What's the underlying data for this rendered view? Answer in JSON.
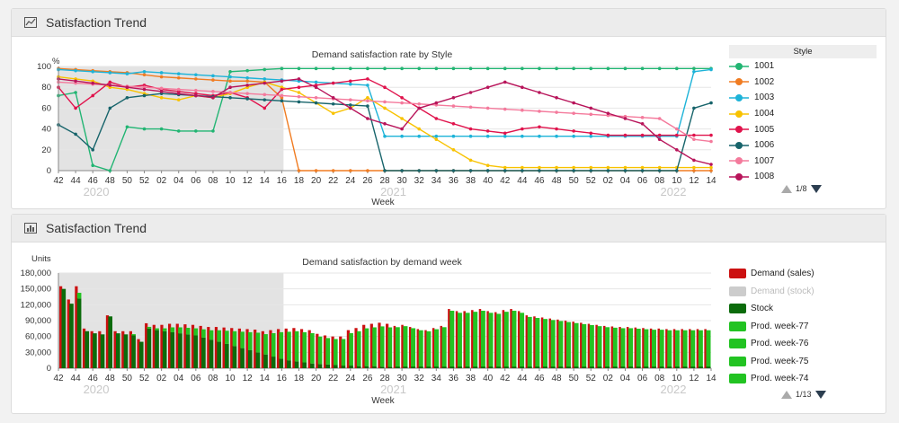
{
  "panel1": {
    "title": "Satisfaction Trend",
    "icon": "line-chart-icon",
    "legend_header": "Style",
    "legend_items": [
      {
        "label": "1001",
        "color": "#22b573"
      },
      {
        "label": "1002",
        "color": "#f07c22"
      },
      {
        "label": "1003",
        "color": "#1db3d8"
      },
      {
        "label": "1004",
        "color": "#f8c200"
      },
      {
        "label": "1005",
        "color": "#e0134c"
      },
      {
        "label": "1006",
        "color": "#17646b"
      },
      {
        "label": "1007",
        "color": "#f47a9c"
      },
      {
        "label": "1008",
        "color": "#b8145a"
      }
    ],
    "pager": "1/8"
  },
  "panel2": {
    "title": "Satisfaction Trend",
    "icon": "bar-chart-icon",
    "legend_items": [
      {
        "label": "Demand (sales)",
        "color": "#cc1111",
        "muted": false
      },
      {
        "label": "Demand (stock)",
        "color": "#cccccc",
        "muted": true
      },
      {
        "label": "Stock",
        "color": "#0b6b0b",
        "muted": false
      },
      {
        "label": "Prod. week-77",
        "color": "#22c322",
        "muted": false
      },
      {
        "label": "Prod. week-76",
        "color": "#22c322",
        "muted": false
      },
      {
        "label": "Prod. week-75",
        "color": "#22c322",
        "muted": false
      },
      {
        "label": "Prod. week-74",
        "color": "#22c322",
        "muted": false
      }
    ],
    "pager": "1/13"
  },
  "x_ticks": [
    "42",
    "44",
    "46",
    "48",
    "50",
    "52",
    "02",
    "04",
    "06",
    "08",
    "10",
    "12",
    "14",
    "16",
    "18",
    "20",
    "22",
    "24",
    "26",
    "28",
    "30",
    "32",
    "34",
    "36",
    "38",
    "40",
    "42",
    "44",
    "46",
    "48",
    "50",
    "52",
    "02",
    "04",
    "06",
    "08",
    "10",
    "12",
    "14"
  ],
  "years": [
    "2020",
    "2021",
    "2022"
  ],
  "chart_data": [
    {
      "type": "line",
      "title": "Demand satisfaction rate by Style",
      "xlabel": "Week",
      "ylabel": "%",
      "ylim": [
        0,
        100
      ],
      "y_ticks": [
        "0",
        "20",
        "40",
        "60",
        "80",
        "100"
      ],
      "shaded_region": {
        "from": "42",
        "to": "16"
      },
      "series": [
        {
          "name": "1001",
          "values": [
            72,
            75,
            5,
            0,
            42,
            40,
            40,
            38,
            38,
            38,
            95,
            96,
            97,
            98,
            98,
            98,
            98,
            98,
            98,
            98,
            98,
            98,
            98,
            98,
            98,
            98,
            98,
            98,
            98,
            98,
            98,
            98,
            98,
            98,
            98,
            98,
            98,
            98,
            98
          ]
        },
        {
          "name": "1002",
          "values": [
            98,
            97,
            96,
            95,
            94,
            92,
            90,
            89,
            88,
            87,
            86,
            86,
            85,
            70,
            0,
            0,
            0,
            0,
            0,
            0,
            0,
            0,
            0,
            0,
            0,
            0,
            0,
            0,
            0,
            0,
            0,
            0,
            0,
            0,
            0,
            0,
            0,
            0,
            0
          ]
        },
        {
          "name": "1003",
          "values": [
            97,
            96,
            95,
            94,
            93,
            95,
            94,
            93,
            92,
            91,
            90,
            89,
            88,
            87,
            86,
            85,
            84,
            83,
            82,
            33,
            33,
            33,
            33,
            33,
            33,
            33,
            33,
            33,
            33,
            33,
            33,
            33,
            33,
            33,
            33,
            33,
            33,
            95,
            97
          ]
        },
        {
          "name": "1004",
          "values": [
            90,
            88,
            86,
            80,
            78,
            74,
            70,
            68,
            72,
            70,
            74,
            80,
            85,
            80,
            75,
            65,
            55,
            60,
            70,
            60,
            50,
            40,
            30,
            20,
            10,
            5,
            3,
            3,
            3,
            3,
            3,
            3,
            3,
            3,
            3,
            3,
            3,
            3,
            3
          ]
        },
        {
          "name": "1005",
          "values": [
            80,
            60,
            72,
            85,
            80,
            82,
            78,
            76,
            74,
            72,
            75,
            70,
            60,
            78,
            80,
            82,
            84,
            86,
            88,
            80,
            70,
            60,
            50,
            45,
            40,
            38,
            36,
            40,
            42,
            40,
            38,
            36,
            34,
            34,
            34,
            34,
            34,
            34,
            34
          ]
        },
        {
          "name": "1006",
          "values": [
            44,
            35,
            20,
            60,
            70,
            72,
            74,
            73,
            72,
            71,
            70,
            69,
            68,
            67,
            66,
            65,
            64,
            63,
            62,
            0,
            0,
            0,
            0,
            0,
            0,
            0,
            0,
            0,
            0,
            0,
            0,
            0,
            0,
            0,
            0,
            0,
            0,
            60,
            65
          ]
        },
        {
          "name": "1007",
          "values": [
            85,
            84,
            83,
            82,
            81,
            80,
            79,
            78,
            77,
            76,
            75,
            74,
            73,
            72,
            71,
            70,
            69,
            68,
            67,
            66,
            65,
            64,
            63,
            62,
            61,
            60,
            59,
            58,
            57,
            56,
            55,
            54,
            53,
            52,
            51,
            50,
            40,
            30,
            28
          ]
        },
        {
          "name": "1008",
          "values": [
            88,
            86,
            84,
            82,
            80,
            78,
            76,
            74,
            72,
            70,
            80,
            82,
            84,
            86,
            88,
            80,
            70,
            60,
            50,
            45,
            40,
            60,
            65,
            70,
            75,
            80,
            85,
            80,
            75,
            70,
            65,
            60,
            55,
            50,
            45,
            30,
            20,
            10,
            6
          ]
        }
      ]
    },
    {
      "type": "bar",
      "title": "Demand satisfaction by demand week",
      "xlabel": "Week",
      "ylabel": "Units",
      "ylim": [
        0,
        180000
      ],
      "y_ticks": [
        "0",
        "30,000",
        "60,000",
        "90,000",
        "120,000",
        "150,000",
        "180,000"
      ],
      "shaded_region": {
        "from": "42",
        "to": "16"
      },
      "series": [
        {
          "name": "Demand (sales)",
          "values": [
            155000,
            130000,
            155000,
            75000,
            70000,
            70000,
            100000,
            70000,
            70000,
            70000,
            55000,
            85000,
            82000,
            82000,
            84000,
            84000,
            83000,
            82000,
            80000,
            78000,
            78000,
            77000,
            76000,
            75000,
            74000,
            73000,
            70000,
            72000,
            74000,
            75000,
            76000,
            74000,
            72000,
            65000,
            62000,
            60000,
            60000,
            72000,
            76000,
            82000,
            84000,
            86000,
            84000,
            80000,
            82000,
            78000,
            74000,
            72000,
            76000,
            80000,
            112000,
            108000,
            108000,
            110000,
            112000,
            108000,
            106000,
            110000,
            112000,
            108000,
            100000,
            98000,
            96000,
            94000,
            92000,
            90000,
            88000,
            86000,
            84000,
            82000,
            80000,
            79000,
            78000,
            78000,
            77000,
            76000,
            75000,
            75000,
            74000,
            74000,
            74000,
            74000,
            74000,
            74000
          ]
        },
        {
          "name": "Stock",
          "values": [
            150000,
            122000,
            132000,
            70000,
            66000,
            64000,
            98000,
            66000,
            64000,
            62000,
            50000,
            75000,
            72000,
            70000,
            68000,
            66000,
            64000,
            62000,
            58000,
            54000,
            50000,
            46000,
            42000,
            38000,
            34000,
            30000,
            26000,
            22000,
            18000,
            15000,
            13000,
            11000,
            9000,
            8000,
            7000,
            6000,
            5000,
            5000,
            4000,
            4000,
            4000,
            3000,
            3000,
            3000,
            3000,
            3000,
            3000,
            3000,
            3000,
            3000,
            3000,
            3000,
            3000,
            3000,
            3000,
            3000,
            3000,
            3000,
            3000,
            3000,
            3000,
            3000,
            3000,
            3000,
            3000,
            3000,
            3000,
            3000,
            3000,
            3000,
            3000,
            3000,
            3000,
            3000,
            3000,
            3000,
            3000,
            3000,
            3000,
            3000,
            3000,
            3000,
            3000,
            3000
          ]
        },
        {
          "name": "Prod. week-77",
          "values": [
            0,
            0,
            0,
            0,
            0,
            0,
            0,
            0,
            0,
            0,
            0,
            0,
            0,
            0,
            0,
            0,
            0,
            0,
            0,
            0,
            0,
            0,
            0,
            0,
            0,
            0,
            0,
            0,
            0,
            0,
            0,
            0,
            0,
            0,
            0,
            0,
            0,
            0,
            0,
            0,
            0,
            0,
            0,
            0,
            0,
            0,
            0,
            0,
            0,
            0,
            0,
            0,
            0,
            0,
            0,
            0,
            0,
            0,
            0,
            0,
            0,
            0,
            0,
            0,
            0,
            0,
            0,
            0,
            0,
            0,
            0,
            0,
            0,
            0,
            0,
            0,
            0,
            0,
            0,
            0,
            0,
            0,
            0,
            0
          ]
        }
      ]
    }
  ]
}
